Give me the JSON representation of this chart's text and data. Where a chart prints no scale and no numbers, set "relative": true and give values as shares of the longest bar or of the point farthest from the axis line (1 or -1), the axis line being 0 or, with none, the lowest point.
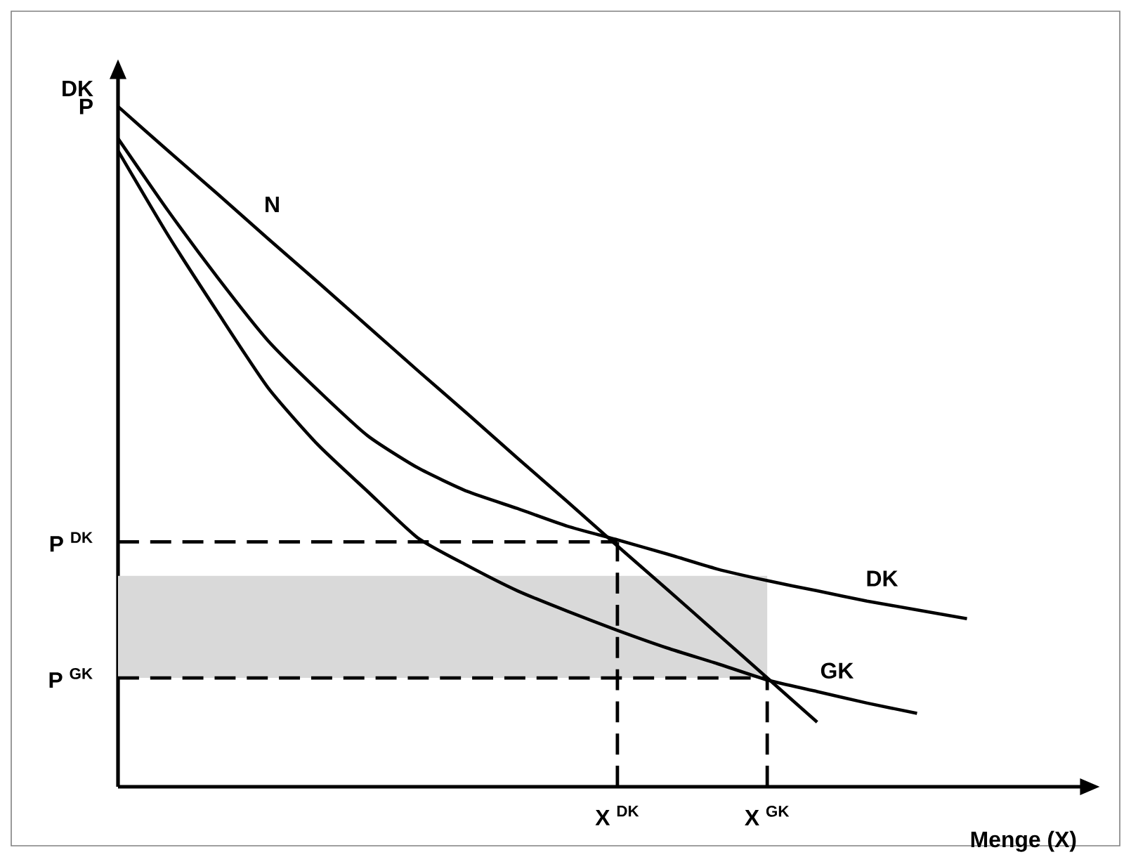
{
  "chart_data": {
    "type": "line",
    "xlabel": "Menge (X)",
    "ylabel": "DK",
    "relative": true,
    "categories": [
      null,
      null,
      null,
      null,
      null,
      null,
      null,
      null,
      null,
      null,
      "X $^{DK}$",
      null,
      null,
      "X $^{GK}$",
      null,
      null,
      null,
      null,
      null
    ],
    "series": [
      {
        "name": "N",
        "color": "#000000",
        "values": [
          1,
          0.935,
          0.871,
          0.806,
          0.742,
          0.677,
          0.612,
          0.548,
          0.483,
          0.419,
          0.354,
          0.29,
          0.225,
          0.16,
          0.095,
          null,
          null,
          null,
          null
        ]
      },
      {
        "name": "DK",
        "color": "#000000",
        "values": [
          0.953,
          0.847,
          0.748,
          0.656,
          0.583,
          0.516,
          0.469,
          0.434,
          0.409,
          0.383,
          0.363,
          0.342,
          0.32,
          0.303,
          0.288,
          0.273,
          0.26,
          0.247,
          null
        ]
      },
      {
        "name": "GK",
        "color": "#000000",
        "values": [
          0.935,
          0.811,
          0.697,
          0.587,
          0.503,
          0.434,
          0.366,
          0.325,
          0.288,
          0.258,
          0.23,
          0.204,
          0.181,
          0.157,
          0.14,
          0.123,
          0.108,
          null,
          null
        ]
      }
    ],
    "annotations": [
      "P"
    ],
    "ref_lines": [
      {
        "axis": "y",
        "value": 0.36,
        "label": "P $^{DK}$",
        "line_style": "dashed"
      },
      {
        "axis": "y",
        "value": 0.16,
        "label": "P $^{GK}$",
        "line_style": "dashed"
      },
      {
        "axis": "x",
        "value": "X $^{DK}$",
        "line_style": "dashed"
      },
      {
        "axis": "x",
        "value": "X $^{GK}$",
        "line_style": "dashed"
      }
    ],
    "bands": [
      {
        "axis": "y",
        "from": 0.16,
        "to": 0.31,
        "color": "#d9d9d9"
      }
    ]
  }
}
